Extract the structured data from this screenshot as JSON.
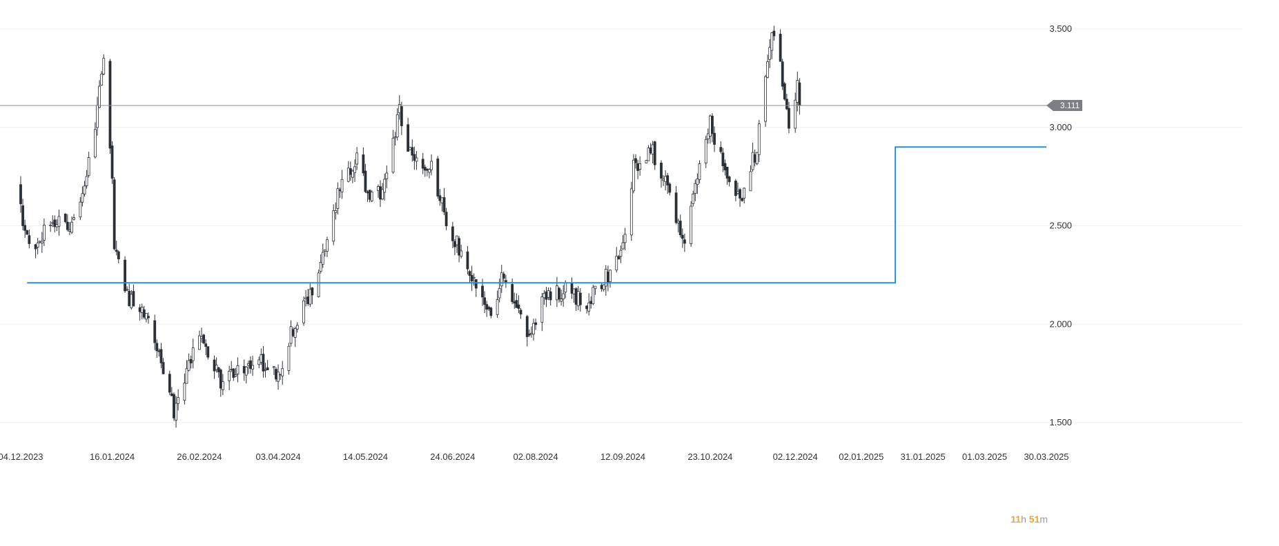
{
  "chart_data": {
    "type": "candlestick",
    "yaxis": {
      "ticks": [
        "1.500",
        "2.000",
        "2.500",
        "3.000",
        "3.500"
      ],
      "range": [
        1.4,
        3.65
      ],
      "position": "right"
    },
    "xaxis": {
      "ticks": [
        "04.12.2023",
        "16.01.2024",
        "26.02.2024",
        "03.04.2024",
        "14.05.2024",
        "24.06.2024",
        "02.08.2024",
        "12.09.2024",
        "23.10.2024",
        "02.12.2024",
        "02.01.2025",
        "31.01.2025",
        "01.03.2025",
        "30.03.2025"
      ]
    },
    "current_price": {
      "label": "3.111",
      "value": 3.111
    },
    "support_line": {
      "value": 2.21,
      "from": "07.12.2023",
      "to": "18.01.2025"
    },
    "resistance_line": {
      "value": 2.9,
      "from": "18.01.2025",
      "to": "30.03.2025"
    },
    "anchors": [
      [
        "02.12.2023",
        2.7
      ],
      [
        "08.12.2023",
        2.38
      ],
      [
        "18.12.2023",
        2.52
      ],
      [
        "29.12.2023",
        2.52
      ],
      [
        "05.01.2024",
        2.82
      ],
      [
        "09.01.2024",
        3.1
      ],
      [
        "12.01.2024",
        3.32
      ],
      [
        "16.01.2024",
        2.78
      ],
      [
        "17.01.2024",
        2.4
      ],
      [
        "23.01.2024",
        2.14
      ],
      [
        "02.02.2024",
        2.05
      ],
      [
        "12.02.2024",
        1.65
      ],
      [
        "14.02.2024",
        1.55
      ],
      [
        "26.02.2024",
        1.95
      ],
      [
        "07.03.2024",
        1.7
      ],
      [
        "15.03.2024",
        1.76
      ],
      [
        "25.03.2024",
        1.82
      ],
      [
        "03.04.2024",
        1.72
      ],
      [
        "08.04.2024",
        1.93
      ],
      [
        "18.04.2024",
        2.15
      ],
      [
        "25.04.2024",
        2.42
      ],
      [
        "03.05.2024",
        2.72
      ],
      [
        "10.05.2024",
        2.85
      ],
      [
        "16.05.2024",
        2.62
      ],
      [
        "23.05.2024",
        2.7
      ],
      [
        "30.05.2024",
        3.08
      ],
      [
        "05.06.2024",
        2.82
      ],
      [
        "14.06.2024",
        2.8
      ],
      [
        "21.06.2024",
        2.52
      ],
      [
        "01.07.2024",
        2.3
      ],
      [
        "12.07.2024",
        2.08
      ],
      [
        "17.07.2024",
        2.22
      ],
      [
        "30.07.2024",
        1.96
      ],
      [
        "06.08.2024",
        2.12
      ],
      [
        "16.08.2024",
        2.18
      ],
      [
        "26.08.2024",
        2.1
      ],
      [
        "05.09.2024",
        2.25
      ],
      [
        "12.09.2024",
        2.4
      ],
      [
        "17.09.2024",
        2.8
      ],
      [
        "26.09.2024",
        2.88
      ],
      [
        "04.10.2024",
        2.66
      ],
      [
        "11.10.2024",
        2.37
      ],
      [
        "18.10.2024",
        2.82
      ],
      [
        "23.10.2024",
        3.02
      ],
      [
        "31.10.2024",
        2.72
      ],
      [
        "07.11.2024",
        2.65
      ],
      [
        "14.11.2024",
        2.9
      ],
      [
        "18.11.2024",
        3.3
      ],
      [
        "21.11.2024",
        3.48
      ],
      [
        "26.11.2024",
        3.25
      ],
      [
        "29.11.2024",
        3.04
      ],
      [
        "03.12.2024",
        3.22
      ],
      [
        "04.12.2024",
        3.11
      ]
    ]
  },
  "countdown": {
    "hours": "11",
    "h_unit": "h",
    "minutes": "51",
    "m_unit": "m"
  },
  "colors": {
    "background": "#ffffff",
    "grid": "#f1f1f1",
    "candle_up_fill": "#ffffff",
    "candle_down_fill": "#2b2f36",
    "candle_stroke": "#2b2f36",
    "level_line": "#2a8be0",
    "price_line": "#8a8f96",
    "price_tag": "#7b7f85",
    "countdown_num": "#e8a33d",
    "countdown_unit": "#999999"
  }
}
